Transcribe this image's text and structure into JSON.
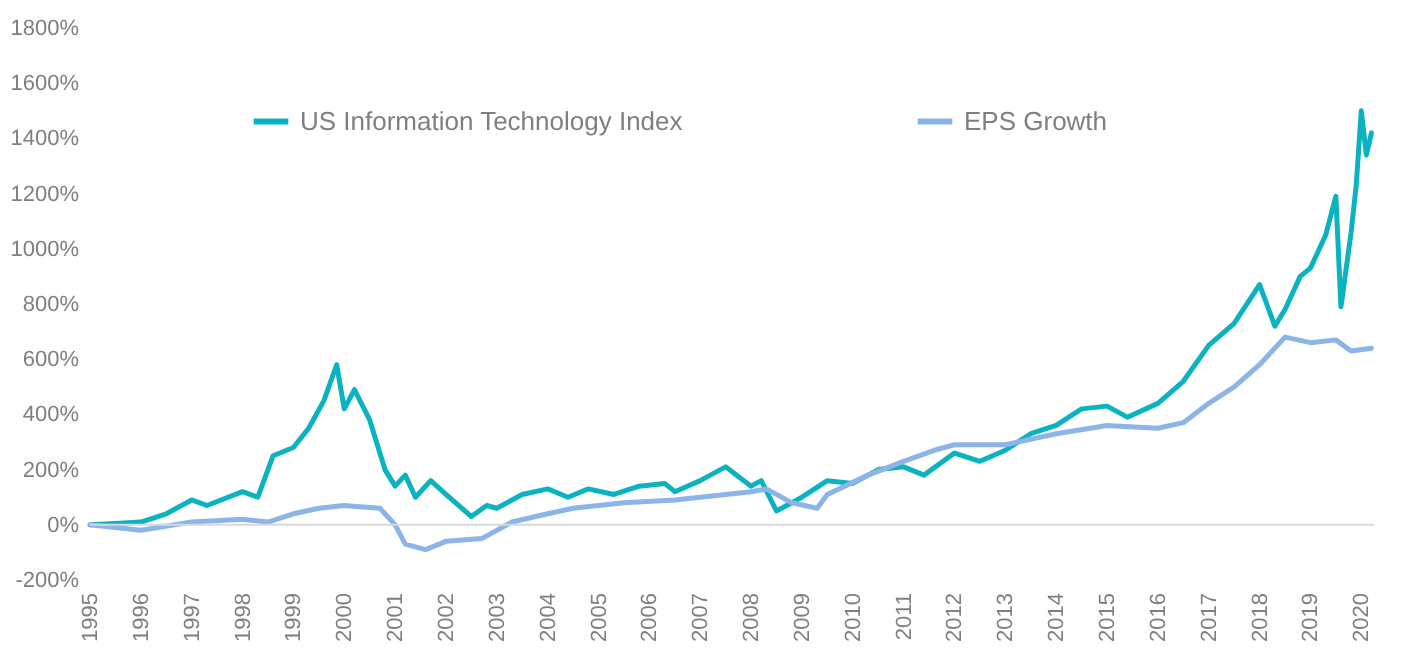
{
  "chart_data": {
    "type": "line",
    "legend": "top",
    "grid": false,
    "line_style": "solid",
    "marker": "none",
    "xlim": [
      1995,
      2020.25
    ],
    "xticks": [
      1995,
      1996,
      1997,
      1998,
      1999,
      2000,
      2001,
      2002,
      2003,
      2004,
      2005,
      2006,
      2007,
      2008,
      2009,
      2010,
      2011,
      2012,
      2013,
      2014,
      2015,
      2016,
      2017,
      2018,
      2019,
      2020
    ],
    "ylim": [
      -200,
      1800
    ],
    "yticks": [
      {
        "value": -200,
        "label": "-200%"
      },
      {
        "value": 0,
        "label": "0%"
      },
      {
        "value": 200,
        "label": "200%"
      },
      {
        "value": 400,
        "label": "400%"
      },
      {
        "value": 600,
        "label": "600%"
      },
      {
        "value": 800,
        "label": "800%"
      },
      {
        "value": 1000,
        "label": "1000%"
      },
      {
        "value": 1200,
        "label": "1200%"
      },
      {
        "value": 1400,
        "label": "1400%"
      },
      {
        "value": 1600,
        "label": "1600%"
      },
      {
        "value": 1800,
        "label": "1800%"
      }
    ],
    "ref_lines": [
      {
        "axis": "y",
        "value": 0,
        "color": "#d9d9d9"
      }
    ],
    "series": [
      {
        "name": "US Information Technology Index",
        "color": "#0ab3bf",
        "x": [
          1995,
          1995.5,
          1996,
          1996.5,
          1997,
          1997.3,
          1998,
          1998.3,
          1998.6,
          1999,
          1999.3,
          1999.6,
          1999.85,
          2000,
          2000.2,
          2000.5,
          2000.8,
          2001,
          2001.2,
          2001.4,
          2001.7,
          2002,
          2002.5,
          2002.8,
          2003,
          2003.5,
          2004,
          2004.4,
          2004.8,
          2005.3,
          2005.8,
          2006.3,
          2006.5,
          2007,
          2007.5,
          2008,
          2008.2,
          2008.5,
          2009,
          2009.5,
          2010,
          2010.5,
          2011,
          2011.4,
          2012,
          2012.5,
          2013,
          2013.5,
          2014,
          2014.5,
          2015,
          2015.4,
          2016,
          2016.5,
          2017,
          2017.5,
          2018,
          2018.3,
          2018.5,
          2018.8,
          2019,
          2019.3,
          2019.5,
          2019.6,
          2019.8,
          2019.9,
          2020,
          2020.1,
          2020.2
        ],
        "values": [
          0,
          5,
          10,
          40,
          90,
          70,
          120,
          100,
          250,
          280,
          350,
          450,
          580,
          420,
          490,
          380,
          200,
          140,
          180,
          100,
          160,
          110,
          30,
          70,
          60,
          110,
          130,
          100,
          130,
          110,
          140,
          150,
          120,
          160,
          210,
          140,
          160,
          50,
          100,
          160,
          150,
          200,
          210,
          180,
          260,
          230,
          270,
          330,
          360,
          420,
          430,
          390,
          440,
          520,
          650,
          730,
          870,
          720,
          780,
          900,
          930,
          1050,
          1190,
          790,
          1060,
          1230,
          1500,
          1340,
          1420
        ]
      },
      {
        "name": "EPS Growth",
        "color": "#8db4e8",
        "x": [
          1995,
          1996,
          1997,
          1998,
          1998.5,
          1999,
          1999.5,
          2000,
          2000.7,
          2001,
          2001.2,
          2001.6,
          2002,
          2002.7,
          2003.3,
          2004,
          2004.5,
          2005.5,
          2006.5,
          2007.5,
          2008,
          2008.3,
          2008.8,
          2009.3,
          2009.5,
          2010.3,
          2011,
          2011.6,
          2012,
          2013,
          2014,
          2015,
          2016,
          2016.5,
          2017,
          2017.5,
          2018,
          2018.5,
          2019,
          2019.5,
          2019.8,
          2020.2
        ],
        "values": [
          0,
          -20,
          10,
          20,
          10,
          40,
          60,
          70,
          60,
          0,
          -70,
          -90,
          -60,
          -50,
          10,
          40,
          60,
          80,
          90,
          110,
          120,
          130,
          80,
          60,
          110,
          180,
          230,
          270,
          290,
          290,
          330,
          360,
          350,
          370,
          440,
          500,
          580,
          680,
          660,
          670,
          630,
          640
        ]
      }
    ]
  }
}
